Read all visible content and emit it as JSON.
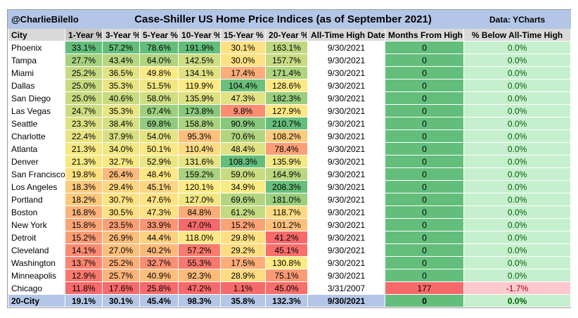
{
  "header": {
    "handle": "@CharlieBilello",
    "title": "Case-Shiller US Home Price Indices (as of September 2021)",
    "source": "Data: YCharts"
  },
  "columns": [
    "City",
    "1-Year %",
    "3-Year %",
    "5-Year %",
    "10-Year %",
    "15-Year %",
    "20-Year %",
    "All-Time High Date",
    "Months From High",
    "% Below All-Time High"
  ],
  "rows": [
    {
      "city": "Phoenix",
      "values": [
        "33.1%",
        "57.2%",
        "78.6%",
        "191.9%",
        "30.1%",
        "163.1%"
      ],
      "date": "9/30/2021",
      "months": "0",
      "below": "0.0%"
    },
    {
      "city": "Tampa",
      "values": [
        "27.7%",
        "43.4%",
        "64.0%",
        "142.5%",
        "30.0%",
        "157.7%"
      ],
      "date": "9/30/2021",
      "months": "0",
      "below": "0.0%"
    },
    {
      "city": "Miami",
      "values": [
        "25.2%",
        "36.5%",
        "49.8%",
        "134.1%",
        "17.4%",
        "171.4%"
      ],
      "date": "9/30/2021",
      "months": "0",
      "below": "0.0%"
    },
    {
      "city": "Dallas",
      "values": [
        "25.0%",
        "35.3%",
        "51.5%",
        "119.9%",
        "104.4%",
        "128.6%"
      ],
      "date": "9/30/2021",
      "months": "0",
      "below": "0.0%"
    },
    {
      "city": "San Diego",
      "values": [
        "25.0%",
        "40.6%",
        "58.0%",
        "135.9%",
        "47.3%",
        "182.3%"
      ],
      "date": "9/30/2021",
      "months": "0",
      "below": "0.0%"
    },
    {
      "city": "Las Vegas",
      "values": [
        "24.7%",
        "35.3%",
        "67.4%",
        "173.8%",
        "9.8%",
        "127.9%"
      ],
      "date": "9/30/2021",
      "months": "0",
      "below": "0.0%"
    },
    {
      "city": "Seattle",
      "values": [
        "23.3%",
        "38.4%",
        "69.8%",
        "158.8%",
        "90.9%",
        "210.7%"
      ],
      "date": "9/30/2021",
      "months": "0",
      "below": "0.0%"
    },
    {
      "city": "Charlotte",
      "values": [
        "22.4%",
        "37.9%",
        "54.0%",
        "95.3%",
        "70.6%",
        "108.2%"
      ],
      "date": "9/30/2021",
      "months": "0",
      "below": "0.0%"
    },
    {
      "city": "Atlanta",
      "values": [
        "21.3%",
        "34.0%",
        "50.1%",
        "110.4%",
        "48.4%",
        "78.4%"
      ],
      "date": "9/30/2021",
      "months": "0",
      "below": "0.0%"
    },
    {
      "city": "Denver",
      "values": [
        "21.3%",
        "32.7%",
        "52.9%",
        "131.6%",
        "108.3%",
        "135.9%"
      ],
      "date": "9/30/2021",
      "months": "0",
      "below": "0.0%"
    },
    {
      "city": "San Francisco",
      "values": [
        "19.8%",
        "26.4%",
        "48.4%",
        "159.2%",
        "59.0%",
        "164.9%"
      ],
      "date": "9/30/2021",
      "months": "0",
      "below": "0.0%"
    },
    {
      "city": "Los Angeles",
      "values": [
        "18.3%",
        "29.4%",
        "45.1%",
        "120.1%",
        "34.9%",
        "208.3%"
      ],
      "date": "9/30/2021",
      "months": "0",
      "below": "0.0%"
    },
    {
      "city": "Portland",
      "values": [
        "18.2%",
        "30.7%",
        "47.6%",
        "127.0%",
        "69.6%",
        "181.0%"
      ],
      "date": "9/30/2021",
      "months": "0",
      "below": "0.0%"
    },
    {
      "city": "Boston",
      "values": [
        "16.8%",
        "30.5%",
        "47.3%",
        "84.8%",
        "61.2%",
        "118.7%"
      ],
      "date": "9/30/2021",
      "months": "0",
      "below": "0.0%"
    },
    {
      "city": "New York",
      "values": [
        "15.8%",
        "23.5%",
        "33.9%",
        "47.0%",
        "15.2%",
        "101.2%"
      ],
      "date": "9/30/2021",
      "months": "0",
      "below": "0.0%"
    },
    {
      "city": "Detroit",
      "values": [
        "15.2%",
        "26.9%",
        "44.4%",
        "118.0%",
        "29.8%",
        "41.2%"
      ],
      "date": "9/30/2021",
      "months": "0",
      "below": "0.0%"
    },
    {
      "city": "Cleveland",
      "values": [
        "14.1%",
        "27.0%",
        "40.2%",
        "57.2%",
        "29.2%",
        "45.1%"
      ],
      "date": "9/30/2021",
      "months": "0",
      "below": "0.0%"
    },
    {
      "city": "Washington",
      "values": [
        "13.7%",
        "25.2%",
        "32.7%",
        "55.3%",
        "17.5%",
        "130.8%"
      ],
      "date": "9/30/2021",
      "months": "0",
      "below": "0.0%"
    },
    {
      "city": "Minneapolis",
      "values": [
        "12.9%",
        "25.7%",
        "40.9%",
        "92.3%",
        "28.9%",
        "75.1%"
      ],
      "date": "9/30/2021",
      "months": "0",
      "below": "0.0%"
    },
    {
      "city": "Chicago",
      "values": [
        "11.8%",
        "17.6%",
        "25.8%",
        "47.2%",
        "1.1%",
        "45.0%"
      ],
      "date": "3/31/2007",
      "months": "177",
      "below": "-1.7%"
    }
  ],
  "total": {
    "city": "20-City",
    "values": [
      "19.1%",
      "30.1%",
      "45.4%",
      "98.3%",
      "35.8%",
      "132.3%"
    ],
    "date": "9/30/2021",
    "months": "0",
    "below": "0.0%"
  },
  "colors": {
    "title_bg": "#b4c6e7",
    "header_bg": "#d9d9d9",
    "months_green": "#63be7b",
    "months_red": "#f8696b",
    "below_green": "#c6efce",
    "below_red": "#ffc7ce",
    "below_red_text": "#9c0006",
    "below_green_text": "#006100",
    "scale_low": "#f8696b",
    "scale_mid": "#ffeb84",
    "scale_high": "#63be7b"
  }
}
